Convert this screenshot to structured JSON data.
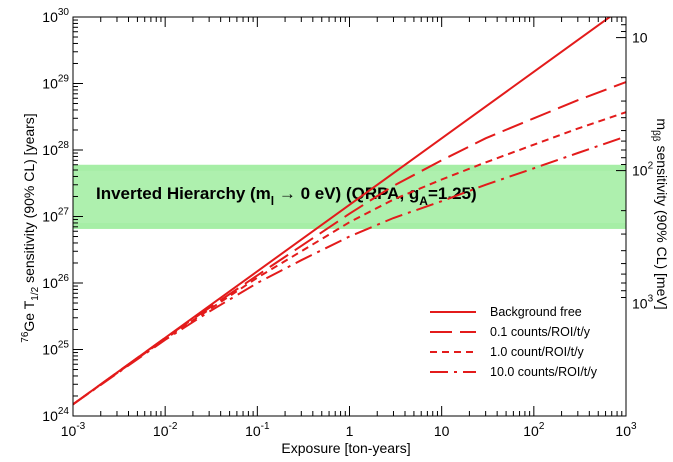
{
  "chart_data": {
    "type": "line",
    "xlabel": "Exposure [ton-years]",
    "ylabel": "76Ge T1/2 sensitivity (90% CL) [years]",
    "y2label": "mββ sensitivity (90% CL) [meV]",
    "x_scale": "log",
    "y_scale": "log",
    "xlim": [
      0.001,
      1000
    ],
    "ylim": [
      1e+24,
      1e+30
    ],
    "x_ticks": [
      0.001,
      0.01,
      0.1,
      1,
      10,
      100,
      1000
    ],
    "x_tick_labels": [
      {
        "base": "10",
        "exp": "-3"
      },
      {
        "base": "10",
        "exp": "-2"
      },
      {
        "base": "10",
        "exp": "-1"
      },
      {
        "base": "1",
        "exp": ""
      },
      {
        "base": "10",
        "exp": ""
      },
      {
        "base": "10",
        "exp": "2"
      },
      {
        "base": "10",
        "exp": "3"
      }
    ],
    "y_ticks": [
      1e+24,
      1e+25,
      1e+26,
      1e+27,
      1e+28,
      1e+29,
      1e+30
    ],
    "y_tick_labels": [
      {
        "base": "10",
        "exp": "24"
      },
      {
        "base": "10",
        "exp": "25"
      },
      {
        "base": "10",
        "exp": "26"
      },
      {
        "base": "10",
        "exp": "27"
      },
      {
        "base": "10",
        "exp": "28"
      },
      {
        "base": "10",
        "exp": "29"
      },
      {
        "base": "10",
        "exp": "30"
      }
    ],
    "y2_ticks_meV": [
      10,
      100,
      1000
    ],
    "y2_tick_labels": [
      {
        "base": "10",
        "exp": ""
      },
      {
        "base": "10",
        "exp": "2"
      },
      {
        "base": "10",
        "exp": "3"
      }
    ],
    "band": {
      "label": "Inverted Hierarchy (m",
      "label_sub1": "l",
      "label_mid": " → 0 eV) (QRPA, g",
      "label_sub2": "A",
      "label_end": "=1.25)",
      "y_range": [
        6.5e+26,
        6e+27
      ],
      "color": "#a6eea6"
    },
    "series": [
      {
        "name": "Background free",
        "dash": "solid",
        "points": [
          [
            0.001,
            1.5e+24
          ],
          [
            0.01,
            1.5e+25
          ],
          [
            0.1,
            1.5e+26
          ],
          [
            1,
            1.5e+27
          ],
          [
            10,
            1.5e+28
          ],
          [
            100,
            1.5e+29
          ],
          [
            800,
            1.2e+30
          ]
        ]
      },
      {
        "name": "0.1 counts/ROI/t/y",
        "dash": "longdash",
        "points": [
          [
            0.001,
            1.5e+24
          ],
          [
            0.01,
            1.5e+25
          ],
          [
            0.1,
            1.3e+26
          ],
          [
            1,
            1.1e+27
          ],
          [
            3,
            2.9e+27
          ],
          [
            10,
            7e+27
          ],
          [
            30,
            1.5e+28
          ],
          [
            100,
            3e+28
          ],
          [
            300,
            5.6e+28
          ],
          [
            1000,
            1.05e+29
          ]
        ]
      },
      {
        "name": "1.0 count/ROI/t/y",
        "dash": "shortdash",
        "points": [
          [
            0.001,
            1.5e+24
          ],
          [
            0.01,
            1.45e+25
          ],
          [
            0.1,
            1.2e+26
          ],
          [
            0.3,
            3e+26
          ],
          [
            1,
            8.2e+26
          ],
          [
            3,
            1.8e+27
          ],
          [
            10,
            3.6e+27
          ],
          [
            30,
            6.5e+27
          ],
          [
            100,
            1.2e+28
          ],
          [
            300,
            2.1e+28
          ],
          [
            1000,
            3.7e+28
          ]
        ]
      },
      {
        "name": "10.0 counts/ROI/t/y",
        "dash": "dashdot",
        "points": [
          [
            0.001,
            1.5e+24
          ],
          [
            0.01,
            1.4e+25
          ],
          [
            0.03,
            3.7e+25
          ],
          [
            0.1,
            1e+26
          ],
          [
            0.3,
            2.2e+26
          ],
          [
            1,
            5e+26
          ],
          [
            3,
            9.5e+26
          ],
          [
            10,
            1.7e+27
          ],
          [
            30,
            3e+27
          ],
          [
            100,
            5.3e+27
          ],
          [
            300,
            9e+27
          ],
          [
            1000,
            1.6e+28
          ]
        ]
      }
    ],
    "colors": {
      "series": "#e31b1b",
      "band": "#a6eea6",
      "axis": "#000000"
    }
  }
}
